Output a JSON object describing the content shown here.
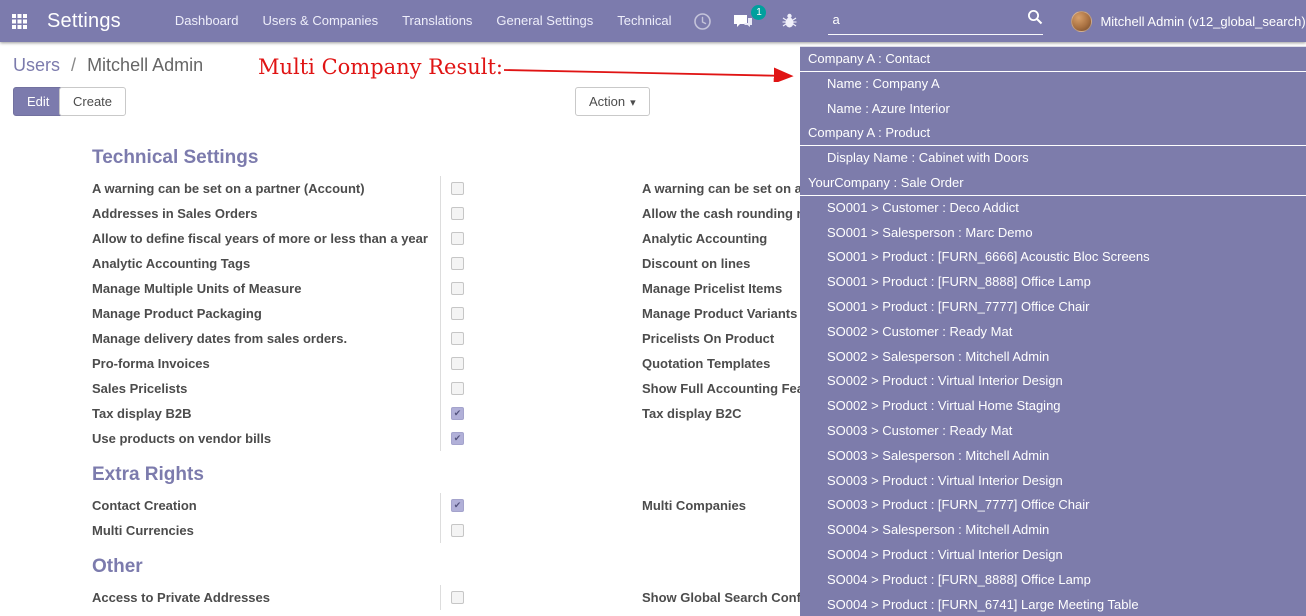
{
  "colors": {
    "navbar_bg": "#7c7bad",
    "dropdown_bg": "#7d7cab",
    "accent": "#7c7bad",
    "badge_bg": "#00a09d",
    "annotation_red": "#e01414"
  },
  "navbar": {
    "app_title": "Settings",
    "menu_items": [
      "Dashboard",
      "Users & Companies",
      "Translations",
      "General Settings",
      "Technical"
    ],
    "messages_badge": "1",
    "search_value": "a",
    "user_name": "Mitchell Admin (v12_global_search)"
  },
  "breadcrumb": {
    "parent": "Users",
    "separator": "/",
    "current": "Mitchell Admin"
  },
  "toolbar": {
    "edit_label": "Edit",
    "create_label": "Create",
    "action_label": "Action"
  },
  "annotation": {
    "text": "Multi Company Result:"
  },
  "icons": {
    "caret_down": "▾",
    "check": "✔"
  },
  "sections": [
    {
      "title": "Technical Settings",
      "rows": [
        {
          "left_label": "A warning can be set on a partner (Account)",
          "left_checked": false,
          "right_label": "A warning can be set on a"
        },
        {
          "left_label": "Addresses in Sales Orders",
          "left_checked": false,
          "right_label": "Allow the cash rounding r"
        },
        {
          "left_label": "Allow to define fiscal years of more or less than a year",
          "left_checked": false,
          "right_label": "Analytic Accounting"
        },
        {
          "left_label": "Analytic Accounting Tags",
          "left_checked": false,
          "right_label": "Discount on lines"
        },
        {
          "left_label": "Manage Multiple Units of Measure",
          "left_checked": false,
          "right_label": "Manage Pricelist Items"
        },
        {
          "left_label": "Manage Product Packaging",
          "left_checked": false,
          "right_label": "Manage Product Variants"
        },
        {
          "left_label": "Manage delivery dates from sales orders.",
          "left_checked": false,
          "right_label": "Pricelists On Product"
        },
        {
          "left_label": "Pro-forma Invoices",
          "left_checked": false,
          "right_label": "Quotation Templates"
        },
        {
          "left_label": "Sales Pricelists",
          "left_checked": false,
          "right_label": "Show Full Accounting Fea"
        },
        {
          "left_label": "Tax display B2B",
          "left_checked": true,
          "right_label": "Tax display B2C"
        },
        {
          "left_label": "Use products on vendor bills",
          "left_checked": true,
          "right_label": ""
        }
      ]
    },
    {
      "title": "Extra Rights",
      "rows": [
        {
          "left_label": "Contact Creation",
          "left_checked": true,
          "right_label": "Multi Companies"
        },
        {
          "left_label": "Multi Currencies",
          "left_checked": false,
          "right_label": ""
        }
      ]
    },
    {
      "title": "Other",
      "rows": [
        {
          "left_label": "Access to Private Addresses",
          "left_checked": false,
          "right_label": "Show Global Search Conf"
        }
      ]
    }
  ],
  "search_dropdown": {
    "rows": [
      {
        "type": "header",
        "text": "Company A : Contact"
      },
      {
        "type": "item",
        "text": "Name : Company A"
      },
      {
        "type": "item",
        "text": "Name : Azure Interior"
      },
      {
        "type": "header",
        "text": "Company A : Product"
      },
      {
        "type": "item",
        "text": "Display Name : Cabinet with Doors"
      },
      {
        "type": "header",
        "text": "YourCompany : Sale Order"
      },
      {
        "type": "item",
        "text": "SO001 > Customer : Deco Addict"
      },
      {
        "type": "item",
        "text": "SO001 > Salesperson : Marc Demo"
      },
      {
        "type": "item",
        "text": "SO001 > Product : [FURN_6666] Acoustic Bloc Screens"
      },
      {
        "type": "item",
        "text": "SO001 > Product : [FURN_8888] Office Lamp"
      },
      {
        "type": "item",
        "text": "SO001 > Product : [FURN_7777] Office Chair"
      },
      {
        "type": "item",
        "text": "SO002 > Customer : Ready Mat"
      },
      {
        "type": "item",
        "text": "SO002 > Salesperson : Mitchell Admin"
      },
      {
        "type": "item",
        "text": "SO002 > Product : Virtual Interior Design"
      },
      {
        "type": "item",
        "text": "SO002 > Product : Virtual Home Staging"
      },
      {
        "type": "item",
        "text": "SO003 > Customer : Ready Mat"
      },
      {
        "type": "item",
        "text": "SO003 > Salesperson : Mitchell Admin"
      },
      {
        "type": "item",
        "text": "SO003 > Product : Virtual Interior Design"
      },
      {
        "type": "item",
        "text": "SO003 > Product : [FURN_7777] Office Chair"
      },
      {
        "type": "item",
        "text": "SO004 > Salesperson : Mitchell Admin"
      },
      {
        "type": "item",
        "text": "SO004 > Product : Virtual Interior Design"
      },
      {
        "type": "item",
        "text": "SO004 > Product : [FURN_8888] Office Lamp"
      },
      {
        "type": "item",
        "text": "SO004 > Product : [FURN_6741] Large Meeting Table"
      }
    ]
  }
}
